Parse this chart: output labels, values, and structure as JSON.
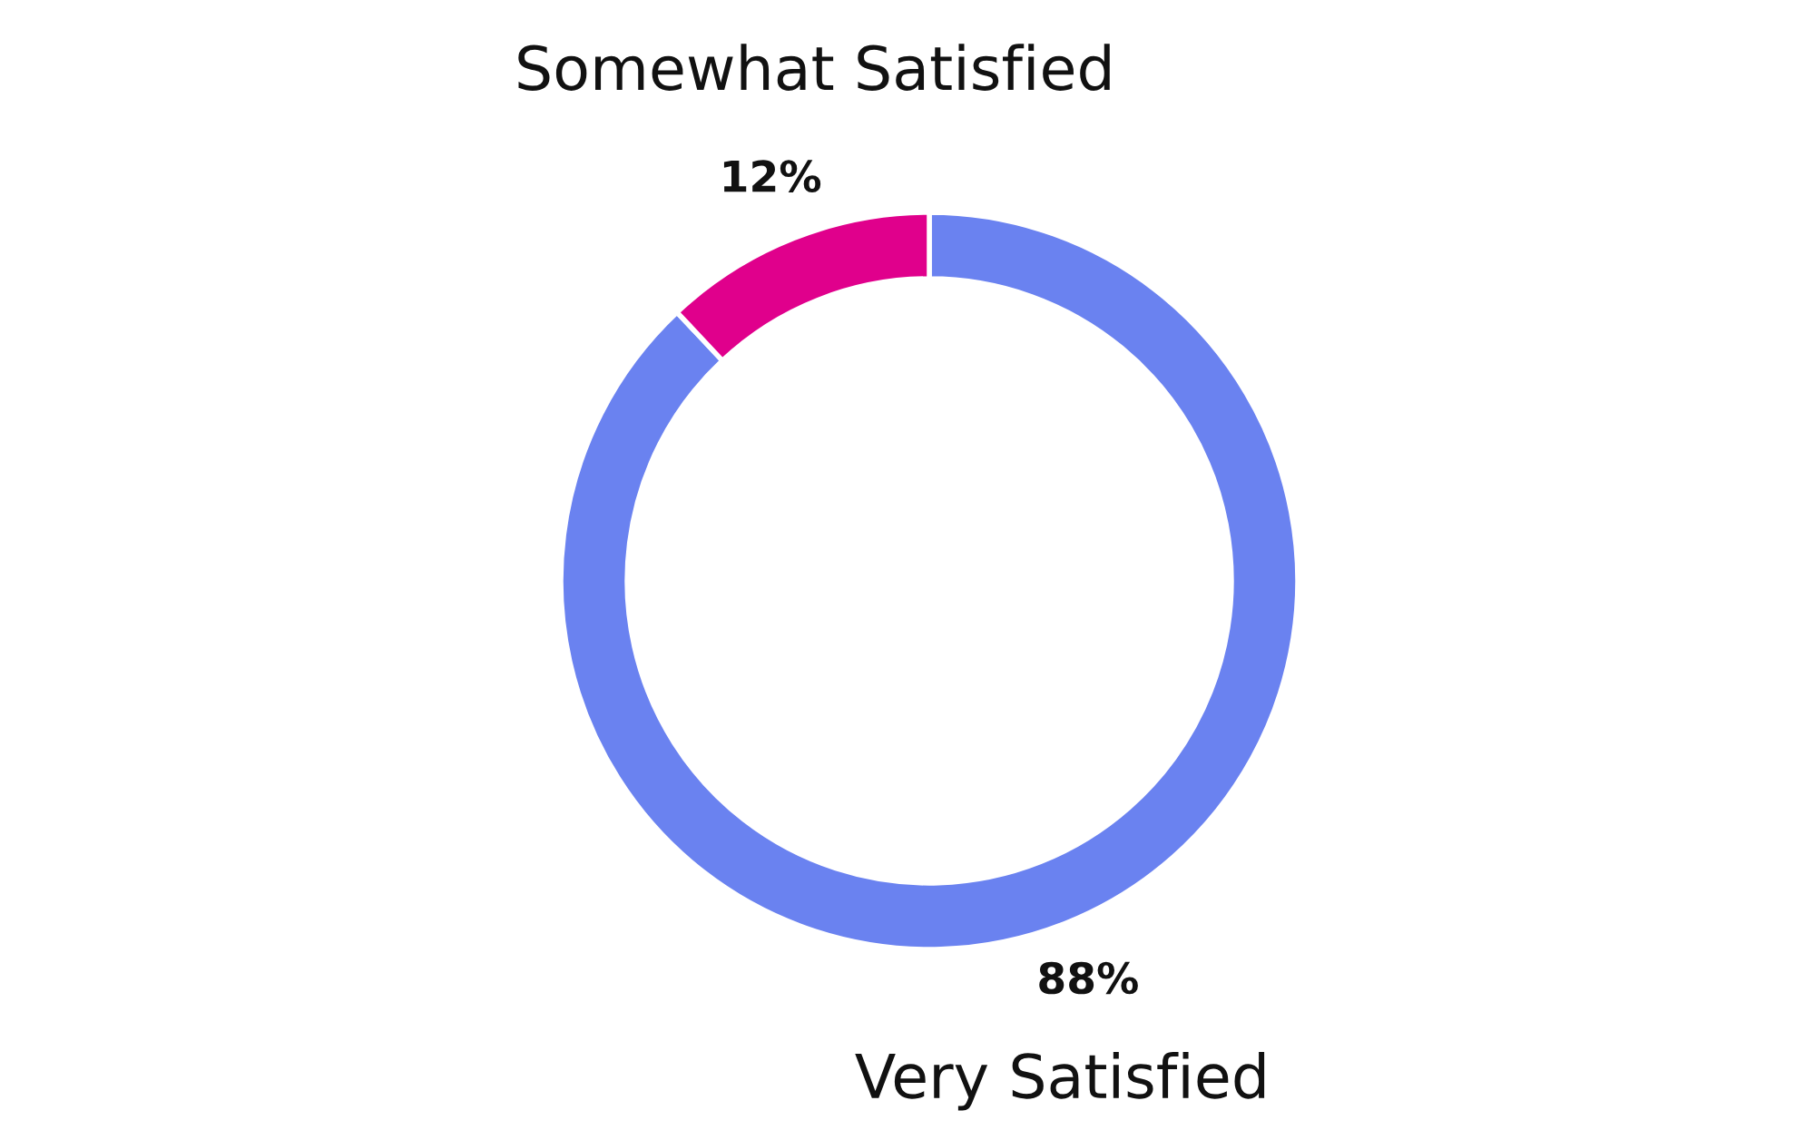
{
  "chart_data": {
    "type": "donut",
    "categories": [
      "Very Satisfied",
      "Somewhat Satisfied"
    ],
    "values": [
      88,
      12
    ],
    "colors": [
      "#6a82f0",
      "#e0008c"
    ],
    "value_labels": [
      "88%",
      "12%"
    ]
  }
}
